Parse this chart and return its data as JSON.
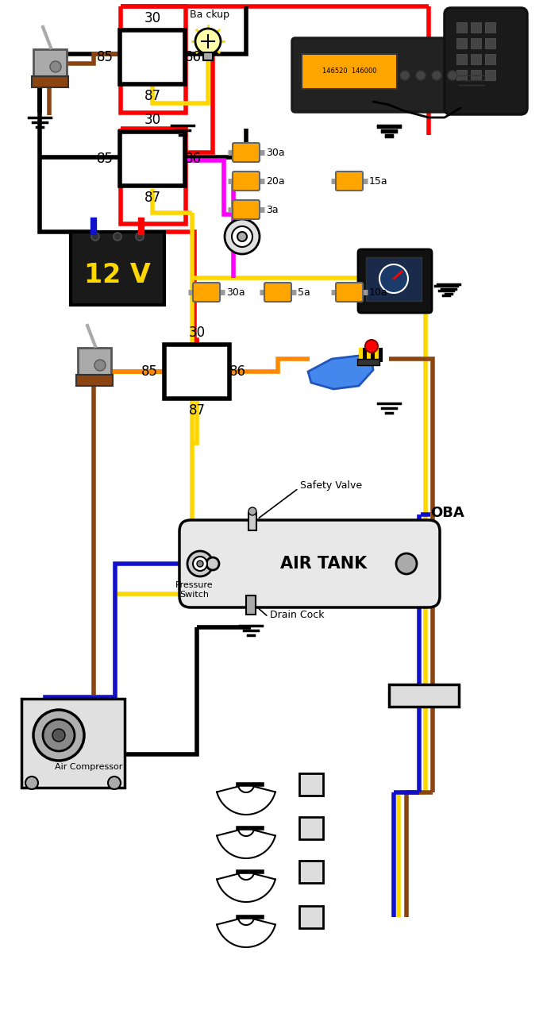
{
  "bg": "#ffffff",
  "red": "#ff0000",
  "yellow": "#ffd700",
  "black": "#000000",
  "brown": "#8B4513",
  "magenta": "#ff00ff",
  "orange": "#ff8800",
  "blue": "#1111cc",
  "fuse_color": "#FFA500",
  "texts": {
    "backup": "Ba ckup",
    "voltage": "12 V",
    "air_tank": "AIR TANK",
    "pressure_switch": "Pressure\nSwitch",
    "safety_valve": "Safety Valve",
    "drain_cock": "Drain Cock",
    "air_compressor": "Air Compressor",
    "oba": "OBA"
  }
}
